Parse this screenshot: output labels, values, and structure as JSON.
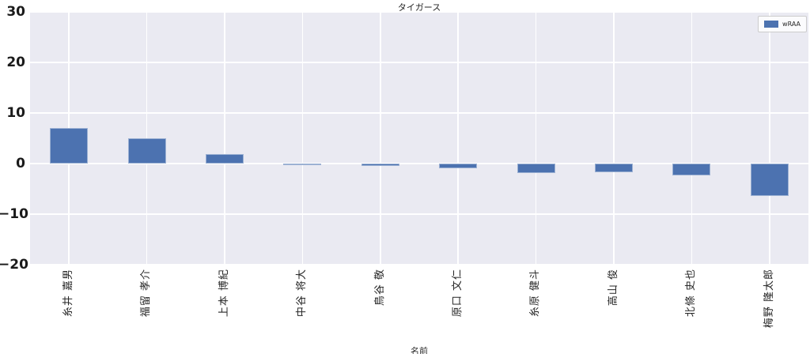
{
  "figure": {
    "background": "#ffffff",
    "plot_background": "#eaeaf2",
    "grid_color": "#ffffff",
    "text_color": "#262626"
  },
  "chart_data": {
    "type": "bar",
    "title": "タイガース",
    "xlabel": "名前",
    "ylabel": "",
    "categories": [
      "糸井 嘉男",
      "福留 孝介",
      "上本 博紀",
      "中谷 将大",
      "鳥谷 敬",
      "原口 文仁",
      "糸原 健斗",
      "高山 俊",
      "北條 史也",
      "梅野 隆太郎"
    ],
    "series": [
      {
        "name": "wRAA",
        "values": [
          7.0,
          5.0,
          1.8,
          -0.2,
          -0.5,
          -1.0,
          -1.8,
          -1.7,
          -2.4,
          -6.4
        ]
      }
    ],
    "ylim": [
      -20,
      30
    ],
    "yticks": [
      30,
      20,
      10,
      0,
      -10,
      -20
    ],
    "ytick_labels": [
      "30",
      "20",
      "10",
      "0",
      "−10",
      "−20"
    ],
    "grid": true,
    "legend_position": "upper-right",
    "bar_color": "#4c72b0",
    "xtick_rotation": 90
  }
}
